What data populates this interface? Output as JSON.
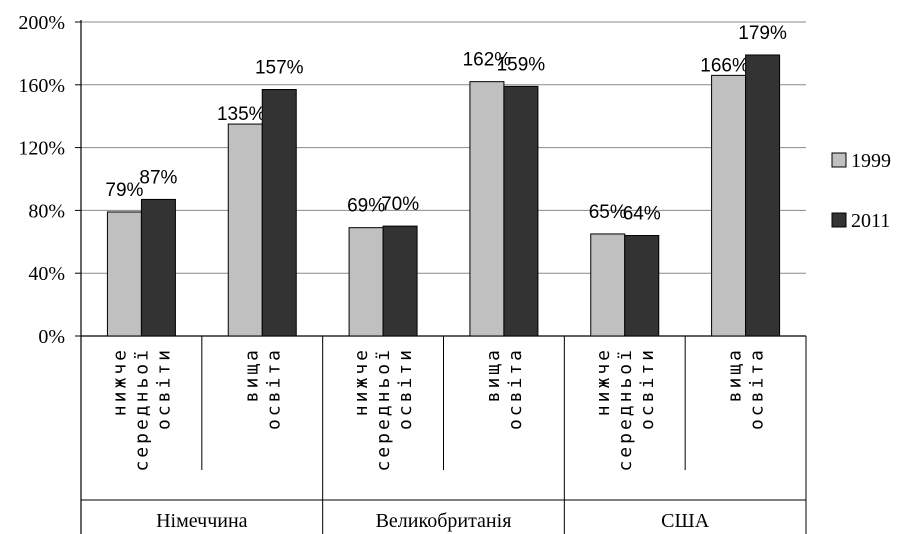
{
  "chart_data": {
    "type": "bar",
    "title": "",
    "xlabel": "",
    "ylabel": "",
    "ylim": [
      0,
      200
    ],
    "yticks": [
      "0%",
      "40%",
      "80%",
      "120%",
      "160%",
      "200%"
    ],
    "grid": true,
    "legend_position": "right",
    "groups": [
      "Німеччина",
      "Великобританія",
      "США"
    ],
    "categories": [
      {
        "group": 0,
        "label_lines": [
          "нижче",
          "середньої",
          "освіти"
        ]
      },
      {
        "group": 0,
        "label_lines": [
          "вища",
          "освіта"
        ]
      },
      {
        "group": 1,
        "label_lines": [
          "нижче",
          "середньої",
          "освіти"
        ]
      },
      {
        "group": 1,
        "label_lines": [
          "вища",
          "освіта"
        ]
      },
      {
        "group": 2,
        "label_lines": [
          "нижче",
          "середньої",
          "освіти"
        ]
      },
      {
        "group": 2,
        "label_lines": [
          "вища",
          "освіта"
        ]
      }
    ],
    "series": [
      {
        "name": "1999",
        "color": "#c0c0c0",
        "values": [
          79,
          135,
          69,
          162,
          65,
          166
        ],
        "labels": [
          "79%",
          "135%",
          "69%",
          "162%",
          "65%",
          "166%"
        ]
      },
      {
        "name": "2011",
        "color": "#333333",
        "values": [
          87,
          157,
          70,
          159,
          64,
          179
        ],
        "labels": [
          "87%",
          "157%",
          "70%",
          "159%",
          "64%",
          "179%"
        ]
      }
    ]
  }
}
